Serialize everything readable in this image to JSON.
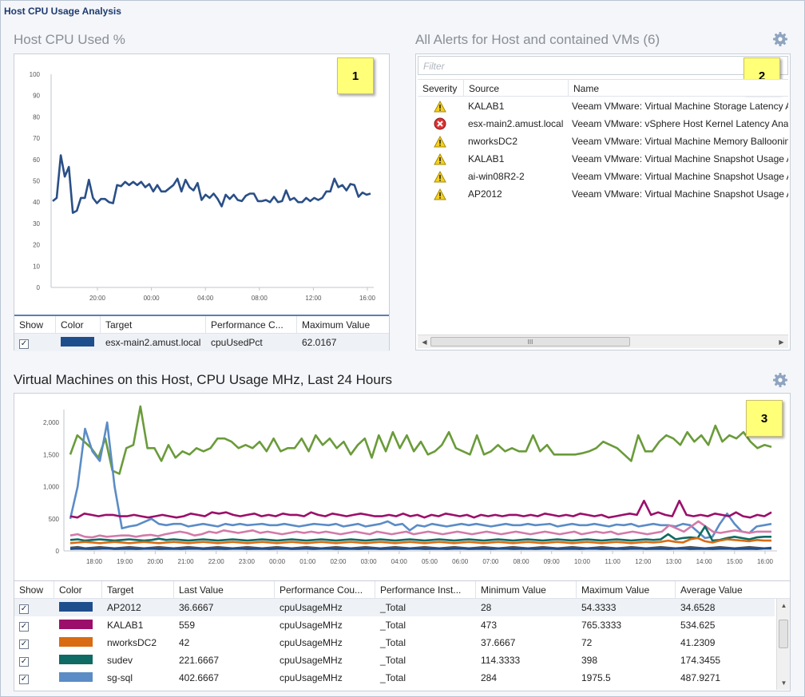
{
  "window": {
    "title": "Host CPU Usage Analysis"
  },
  "host_cpu": {
    "title": "Host CPU Used %",
    "badge": "1",
    "columns": [
      "Show",
      "Color",
      "Target",
      "Performance C...",
      "Maximum Value"
    ],
    "rows": [
      {
        "checked": "✓",
        "color": "#1f4e8c",
        "target": "esx-main2.amust.local",
        "counter": "cpuUsedPct",
        "max": "62.0167"
      }
    ],
    "chart_data": {
      "type": "line",
      "y_ticks": [
        "100",
        "90",
        "80",
        "70",
        "60",
        "50",
        "40",
        "30",
        "20",
        "10",
        "0"
      ],
      "x_ticks": [
        "20:00",
        "00:00",
        "04:00",
        "08:00",
        "12:00",
        "16:00"
      ],
      "ylim": [
        0,
        100
      ],
      "series": [
        {
          "color": "#2a4f86",
          "values": [
            40.5,
            42,
            62,
            52,
            56.5,
            35,
            36,
            42,
            42,
            50.5,
            42,
            39.5,
            41.5,
            41.5,
            40,
            39.5,
            48,
            47.5,
            49.5,
            48,
            49.5,
            48,
            49.5,
            47,
            48.5,
            45,
            48,
            45,
            45,
            46.5,
            48,
            51,
            45,
            50.5,
            47,
            45.5,
            49,
            41,
            43.5,
            42,
            44,
            41.5,
            38,
            43.5,
            41.5,
            43.5,
            41,
            40.5,
            43,
            44,
            44,
            40.5,
            40.5,
            41,
            40,
            42.5,
            40,
            40.5,
            45.5,
            41,
            42,
            40,
            40,
            42,
            40.5,
            42,
            41,
            42,
            45,
            45,
            51,
            47,
            48,
            45.5,
            48.5,
            48,
            42.5,
            44.5,
            43.5,
            44
          ]
        }
      ]
    }
  },
  "alerts": {
    "title": "All Alerts for Host and contained VMs (6)",
    "badge": "2",
    "filter_placeholder": "Filter",
    "columns": [
      "Severity",
      "Source",
      "Name"
    ],
    "rows": [
      {
        "severity": "warning",
        "source": "KALAB1",
        "name": "Veeam VMware: Virtual Machine Storage Latency Ana"
      },
      {
        "severity": "critical",
        "source": "esx-main2.amust.local",
        "name": "Veeam VMware: vSphere Host Kernel Latency Analy"
      },
      {
        "severity": "warning",
        "source": "nworksDC2",
        "name": "Veeam VMware: Virtual Machine Memory Ballooning"
      },
      {
        "severity": "warning",
        "source": "KALAB1",
        "name": "Veeam VMware: Virtual Machine Snapshot Usage An"
      },
      {
        "severity": "warning",
        "source": "ai-win08R2-2",
        "name": "Veeam VMware: Virtual Machine Snapshot Usage An"
      },
      {
        "severity": "warning",
        "source": "AP2012",
        "name": "Veeam VMware: Virtual Machine Snapshot Usage An"
      }
    ],
    "scroll_grip": "III"
  },
  "vm_cpu": {
    "title": "Virtual Machines on this Host, CPU Usage MHz, Last 24 Hours",
    "badge": "3",
    "columns": [
      "Show",
      "Color",
      "Target",
      "Last Value",
      "Performance Cou...",
      "Performance Inst...",
      "Minimum Value",
      "Maximum Value",
      "Average Value"
    ],
    "rows": [
      {
        "checked": "✓",
        "color": "#1f4e8c",
        "target": "AP2012",
        "last": "36.6667",
        "counter": "cpuUsageMHz",
        "instance": "_Total",
        "min": "28",
        "max": "54.3333",
        "avg": "34.6528"
      },
      {
        "checked": "✓",
        "color": "#9b0f6a",
        "target": "KALAB1",
        "last": "559",
        "counter": "cpuUsageMHz",
        "instance": "_Total",
        "min": "473",
        "max": "765.3333",
        "avg": "534.625"
      },
      {
        "checked": "✓",
        "color": "#d96b12",
        "target": "nworksDC2",
        "last": "42",
        "counter": "cpuUsageMHz",
        "instance": "_Total",
        "min": "37.6667",
        "max": "72",
        "avg": "41.2309"
      },
      {
        "checked": "✓",
        "color": "#0f6b63",
        "target": "sudev",
        "last": "221.6667",
        "counter": "cpuUsageMHz",
        "instance": "_Total",
        "min": "114.3333",
        "max": "398",
        "avg": "174.3455"
      },
      {
        "checked": "✓",
        "color": "#5b8cc6",
        "target": "sg-sql",
        "last": "402.6667",
        "counter": "cpuUsageMHz",
        "instance": "_Total",
        "min": "284",
        "max": "1975.5",
        "avg": "487.9271"
      }
    ],
    "chart_data": {
      "type": "line",
      "y_ticks": [
        "2,000",
        "1,500",
        "1,000",
        "500",
        "0"
      ],
      "x_ticks": [
        "18:00",
        "19:00",
        "20:00",
        "21:00",
        "22:00",
        "23:00",
        "00:00",
        "01:00",
        "02:00",
        "03:00",
        "04:00",
        "05:00",
        "06:00",
        "07:00",
        "08:00",
        "09:00",
        "10:00",
        "11:00",
        "12:00",
        "13:00",
        "14:00",
        "15:00",
        "16:00"
      ],
      "ylim": [
        0,
        2200
      ],
      "series": [
        {
          "color": "#6a9b3a",
          "values": [
            1500,
            1800,
            1700,
            1600,
            1450,
            1750,
            1250,
            1200,
            1600,
            1650,
            2250,
            1600,
            1600,
            1400,
            1650,
            1450,
            1550,
            1500,
            1600,
            1550,
            1600,
            1750,
            1750,
            1700,
            1600,
            1650,
            1600,
            1700,
            1550,
            1750,
            1550,
            1600,
            1600,
            1750,
            1550,
            1800,
            1650,
            1750,
            1600,
            1700,
            1500,
            1650,
            1750,
            1450,
            1800,
            1550,
            1850,
            1600,
            1800,
            1550,
            1700,
            1500,
            1550,
            1650,
            1850,
            1600,
            1550,
            1500,
            1800,
            1500,
            1550,
            1650,
            1550,
            1600,
            1550,
            1550,
            1800,
            1550,
            1650,
            1500,
            1500,
            1500,
            1500,
            1520,
            1550,
            1600,
            1700,
            1650,
            1600,
            1500,
            1400,
            1800,
            1550,
            1550,
            1700,
            1800,
            1750,
            1650,
            1850,
            1700,
            1800,
            1650,
            1950,
            1700,
            1800,
            1750,
            1850,
            1700,
            1600,
            1650,
            1620
          ]
        },
        {
          "color": "#5b8cc6",
          "values": [
            500,
            1000,
            1900,
            1550,
            1400,
            2000,
            1000,
            350,
            380,
            400,
            450,
            500,
            420,
            400,
            420,
            420,
            380,
            400,
            420,
            400,
            380,
            420,
            400,
            420,
            400,
            410,
            420,
            400,
            400,
            420,
            400,
            380,
            400,
            420,
            410,
            400,
            420,
            380,
            400,
            420,
            380,
            400,
            420,
            460,
            400,
            420,
            320,
            400,
            380,
            420,
            400,
            380,
            400,
            420,
            400,
            420,
            400,
            380,
            400,
            420,
            400,
            400,
            420,
            400,
            410,
            420,
            380,
            400,
            420,
            400,
            400,
            420,
            400,
            380,
            410,
            400,
            420,
            380,
            400,
            420,
            400,
            400,
            380,
            420,
            400,
            300,
            200,
            220,
            420,
            580,
            420,
            300,
            280,
            380,
            400,
            420
          ]
        },
        {
          "color": "#9b0f6a",
          "values": [
            540,
            520,
            580,
            560,
            540,
            560,
            560,
            540,
            540,
            560,
            540,
            520,
            540,
            560,
            540,
            520,
            540,
            580,
            560,
            540,
            600,
            580,
            600,
            560,
            540,
            560,
            580,
            540,
            560,
            540,
            580,
            560,
            560,
            540,
            600,
            560,
            540,
            580,
            560,
            540,
            560,
            580,
            560,
            540,
            540,
            560,
            540,
            580,
            540,
            560,
            520,
            560,
            540,
            580,
            560,
            540,
            560,
            520,
            560,
            540,
            560,
            540,
            560,
            560,
            540,
            560,
            540,
            580,
            560,
            540,
            560,
            540,
            580,
            560,
            540,
            560,
            520,
            540,
            560,
            580,
            560,
            780,
            560,
            600,
            560,
            540,
            780,
            560,
            540,
            560,
            540,
            580,
            560,
            540,
            600,
            540,
            520,
            560,
            540,
            600
          ]
        },
        {
          "color": "#d37aa8",
          "values": [
            240,
            260,
            220,
            210,
            240,
            220,
            230,
            240,
            240,
            220,
            240,
            250,
            230,
            260,
            280,
            300,
            280,
            240,
            260,
            300,
            280,
            320,
            300,
            280,
            300,
            320,
            280,
            300,
            280,
            260,
            280,
            300,
            280,
            300,
            280,
            300,
            280,
            260,
            280,
            300,
            280,
            260,
            300,
            280,
            260,
            280,
            300,
            260,
            280,
            300,
            280,
            260,
            280,
            300,
            280,
            260,
            280,
            300,
            280,
            260,
            280,
            300,
            280,
            260,
            280,
            300,
            280,
            260,
            280,
            300,
            260,
            280,
            300,
            280,
            300,
            260,
            280,
            300,
            280,
            260,
            280,
            300,
            400,
            350,
            300,
            380,
            460,
            380,
            300,
            280,
            300,
            320,
            300,
            280,
            300,
            300,
            300
          ]
        },
        {
          "color": "#0f6b63",
          "values": [
            170,
            180,
            160,
            170,
            180,
            170,
            160,
            170,
            180,
            170,
            160,
            170,
            190,
            170,
            180,
            170,
            160,
            170,
            180,
            170,
            160,
            170,
            180,
            170,
            160,
            170,
            180,
            170,
            160,
            170,
            180,
            170,
            160,
            170,
            180,
            170,
            160,
            170,
            180,
            170,
            160,
            170,
            180,
            170,
            160,
            170,
            180,
            170,
            160,
            170,
            180,
            170,
            160,
            170,
            180,
            170,
            160,
            170,
            180,
            170,
            160,
            170,
            180,
            170,
            160,
            170,
            180,
            170,
            160,
            170,
            180,
            170,
            160,
            170,
            180,
            170,
            160,
            170,
            180,
            170,
            180,
            260,
            180,
            200,
            210,
            200,
            380,
            160,
            170,
            200,
            220,
            200,
            180,
            210,
            220,
            220
          ]
        },
        {
          "color": "#d96b12",
          "values": [
            120,
            130,
            140,
            130,
            120,
            130,
            140,
            130,
            120,
            130,
            140,
            130,
            120,
            130,
            140,
            130,
            120,
            130,
            140,
            130,
            120,
            130,
            140,
            130,
            120,
            130,
            140,
            130,
            120,
            130,
            140,
            130,
            120,
            130,
            140,
            130,
            120,
            130,
            140,
            130,
            120,
            130,
            140,
            130,
            120,
            130,
            140,
            130,
            120,
            130,
            140,
            130,
            120,
            130,
            140,
            130,
            120,
            130,
            140,
            130,
            120,
            130,
            140,
            130,
            120,
            130,
            140,
            130,
            120,
            130,
            140,
            130,
            120,
            130,
            140,
            130,
            120,
            130,
            140,
            130,
            140,
            160,
            140,
            130,
            180,
            200,
            150,
            130,
            160,
            180,
            170,
            160,
            150,
            170,
            160,
            160
          ]
        },
        {
          "color": "#555555",
          "values": [
            50,
            60,
            40,
            50,
            60,
            50,
            40,
            50,
            60,
            50,
            40,
            50,
            60,
            50,
            40,
            50,
            60,
            50,
            40,
            50,
            60,
            50,
            40,
            50,
            60,
            50,
            40,
            50,
            60,
            50,
            40,
            50,
            60,
            50,
            40,
            50,
            60,
            50,
            40,
            50,
            60,
            50,
            40,
            50,
            60,
            50,
            40,
            50,
            60,
            50,
            40,
            50,
            60,
            50,
            40,
            50,
            60,
            50,
            40,
            50,
            60,
            50,
            40,
            50,
            60,
            50,
            40,
            50,
            60,
            50,
            40,
            50,
            60,
            50,
            40,
            50,
            60,
            50,
            40,
            50,
            60,
            50,
            40,
            50,
            60,
            50,
            40,
            50,
            60,
            50,
            40,
            50,
            60,
            50,
            40,
            50
          ]
        },
        {
          "color": "#1f4e8c",
          "values": [
            30,
            35,
            32,
            30,
            34,
            36,
            30,
            32,
            34,
            30,
            33,
            35,
            30,
            32,
            34,
            30,
            33,
            35,
            30,
            32,
            34,
            30,
            33,
            35,
            30,
            32,
            34,
            30,
            33,
            35,
            30,
            32,
            34,
            30,
            33,
            35,
            30,
            32,
            34,
            30,
            33,
            35,
            30,
            32,
            34,
            30,
            33,
            35,
            30,
            32,
            34,
            30,
            33,
            35,
            30,
            32,
            34,
            30,
            33,
            35,
            30,
            32,
            34,
            30,
            33,
            35,
            30,
            32,
            34,
            30,
            33,
            35,
            30,
            32,
            34,
            30,
            33,
            35,
            30,
            32,
            34,
            30,
            33,
            35,
            30,
            32,
            34,
            30,
            33,
            35,
            30,
            32,
            34,
            30,
            36,
            36
          ]
        }
      ]
    }
  }
}
